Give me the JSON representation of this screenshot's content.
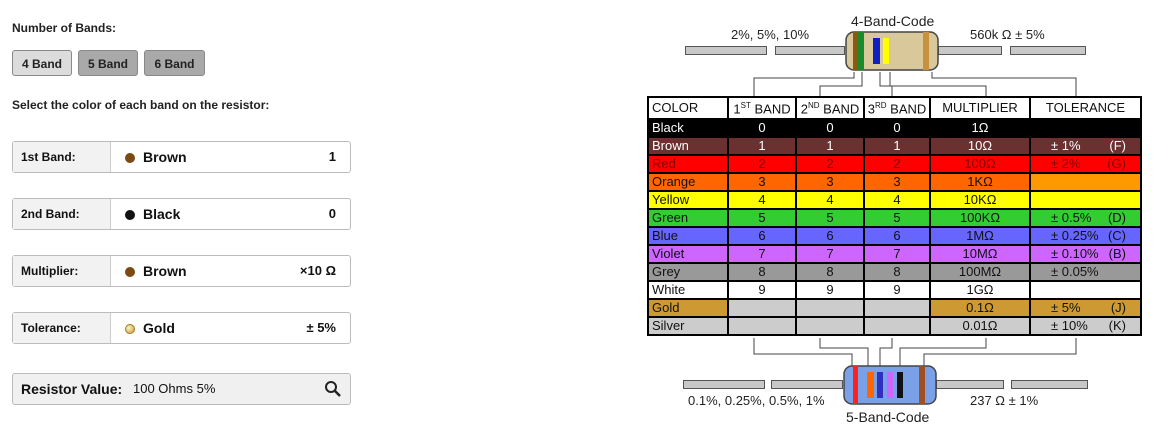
{
  "bands_label": "Number of Bands:",
  "band_buttons": [
    {
      "label": "4 Band",
      "active": false
    },
    {
      "label": "5 Band",
      "active": true
    },
    {
      "label": "6 Band",
      "active": true
    }
  ],
  "instruction": "Select the color of each band on the resistor:",
  "selectors": [
    {
      "name": "1st Band:",
      "color_name": "Brown",
      "color": "#7a4a10",
      "value": "1"
    },
    {
      "name": "2nd Band:",
      "color_name": "Black",
      "color": "#111111",
      "value": "0"
    },
    {
      "name": "Multiplier:",
      "color_name": "Brown",
      "color": "#7a4a10",
      "value": "×10 Ω"
    },
    {
      "name": "Tolerance:",
      "color_name": "Gold",
      "color": "#d9b15a",
      "value": "± 5%"
    }
  ],
  "result": {
    "label": "Resistor Value:",
    "value": "100 Ohms 5%"
  },
  "diagram": {
    "top_title": "4-Band-Code",
    "top_left": "2%, 5%, 10%",
    "top_right": "560k Ω  ± 5%",
    "bottom_title": "5-Band-Code",
    "bottom_left": "0.1%, 0.25%, 0.5%, 1%",
    "bottom_right": "237 Ω  ± 1%"
  },
  "table": {
    "headers": [
      {
        "main": "COLOR",
        "sup": ""
      },
      {
        "main": "1",
        "sup": "ST",
        "rest": " BAND"
      },
      {
        "main": "2",
        "sup": "ND",
        "rest": " BAND"
      },
      {
        "main": "3",
        "sup": "RD",
        "rest": " BAND"
      },
      {
        "main": "MULTIPLIER",
        "sup": ""
      },
      {
        "main": "TOLERANCE",
        "sup": ""
      }
    ],
    "rows": [
      {
        "color": "Black",
        "bg": "#000000",
        "fg": "#ffffff",
        "b1": "0",
        "b2": "0",
        "b3": "0",
        "mult": "1Ω",
        "tol": "",
        "tl": "",
        "tolbg": "#000000"
      },
      {
        "color": "Brown",
        "bg": "#6b3030",
        "fg": "#ffffff",
        "b1": "1",
        "b2": "1",
        "b3": "1",
        "mult": "10Ω",
        "tol": "± 1%",
        "tl": "(F)",
        "tolbg": "#6b3030"
      },
      {
        "color": "Red",
        "bg": "#ff0000",
        "fg": "#800000",
        "b1": "2",
        "b2": "2",
        "b3": "2",
        "mult": "100Ω",
        "tol": "± 2%",
        "tl": "(G)",
        "tolbg": "#ff0000"
      },
      {
        "color": "Orange",
        "bg": "#ff6600",
        "fg": "#111111",
        "b1": "3",
        "b2": "3",
        "b3": "3",
        "mult": "1KΩ",
        "tol": "",
        "tl": "",
        "tolbg": "#ff9900"
      },
      {
        "color": "Yellow",
        "bg": "#ffff00",
        "fg": "#111111",
        "b1": "4",
        "b2": "4",
        "b3": "4",
        "mult": "10KΩ",
        "tol": "",
        "tl": "",
        "tolbg": "#ffff00"
      },
      {
        "color": "Green",
        "bg": "#33cc33",
        "fg": "#111111",
        "b1": "5",
        "b2": "5",
        "b3": "5",
        "mult": "100KΩ",
        "tol": "± 0.5%",
        "tl": "(D)",
        "tolbg": "#33cc33"
      },
      {
        "color": "Blue",
        "bg": "#6666ff",
        "fg": "#111111",
        "b1": "6",
        "b2": "6",
        "b3": "6",
        "mult": "1MΩ",
        "tol": "± 0.25%",
        "tl": "(C)",
        "tolbg": "#6666ff"
      },
      {
        "color": "Violet",
        "bg": "#cc66ff",
        "fg": "#111111",
        "b1": "7",
        "b2": "7",
        "b3": "7",
        "mult": "10MΩ",
        "tol": "± 0.10%",
        "tl": "(B)",
        "tolbg": "#cc66ff"
      },
      {
        "color": "Grey",
        "bg": "#999999",
        "fg": "#111111",
        "b1": "8",
        "b2": "8",
        "b3": "8",
        "mult": "100MΩ",
        "tol": "± 0.05%",
        "tl": "",
        "tolbg": "#999999"
      },
      {
        "color": "White",
        "bg": "#ffffff",
        "fg": "#111111",
        "b1": "9",
        "b2": "9",
        "b3": "9",
        "mult": "1GΩ",
        "tol": "",
        "tl": "",
        "tolbg": "#ffffff"
      },
      {
        "color": "Gold",
        "bg": "#cc9933",
        "fg": "#111111",
        "b1": "",
        "b2": "",
        "b3": "",
        "mult": "0.1Ω",
        "tol": "± 5%",
        "tl": "(J)",
        "tolbg": "#cc9933"
      },
      {
        "color": "Silver",
        "bg": "#cccccc",
        "fg": "#111111",
        "b1": "",
        "b2": "",
        "b3": "",
        "mult": "0.01Ω",
        "tol": "± 10%",
        "tl": "(K)",
        "tolbg": "#cccccc"
      }
    ]
  }
}
